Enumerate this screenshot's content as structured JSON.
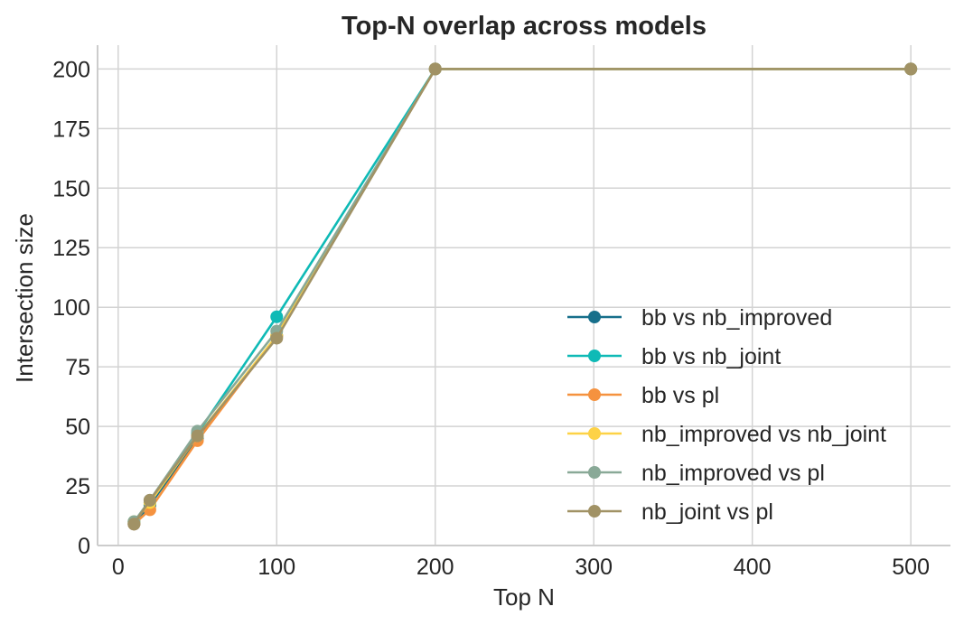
{
  "chart_data": {
    "type": "line",
    "title": "Top-N overlap across models",
    "xlabel": "Top N",
    "ylabel": "Intersection size",
    "xlim": [
      -13,
      525
    ],
    "ylim": [
      0,
      210
    ],
    "xticks": [
      0,
      100,
      200,
      300,
      400,
      500
    ],
    "yticks": [
      0,
      25,
      50,
      75,
      100,
      125,
      150,
      175,
      200
    ],
    "x": [
      10,
      20,
      50,
      100,
      200,
      500
    ],
    "grid": true,
    "legend_position": "lower-right",
    "series": [
      {
        "name": "bb vs nb_improved",
        "color": "#176f8b",
        "values": [
          9,
          17,
          45,
          88,
          200,
          200
        ]
      },
      {
        "name": "bb vs nb_joint",
        "color": "#0fbab6",
        "values": [
          10,
          18,
          47,
          96,
          200,
          200
        ]
      },
      {
        "name": "bb vs pl",
        "color": "#f5923f",
        "values": [
          9,
          15,
          44,
          88,
          200,
          200
        ]
      },
      {
        "name": "nb_improved vs nb_joint",
        "color": "#fdd246",
        "values": [
          10,
          18,
          46,
          88,
          200,
          200
        ]
      },
      {
        "name": "nb_improved vs pl",
        "color": "#89a997",
        "values": [
          10,
          19,
          48,
          90,
          200,
          200
        ]
      },
      {
        "name": "nb_joint vs pl",
        "color": "#a19265",
        "values": [
          9,
          19,
          46,
          87,
          200,
          200
        ]
      }
    ]
  }
}
